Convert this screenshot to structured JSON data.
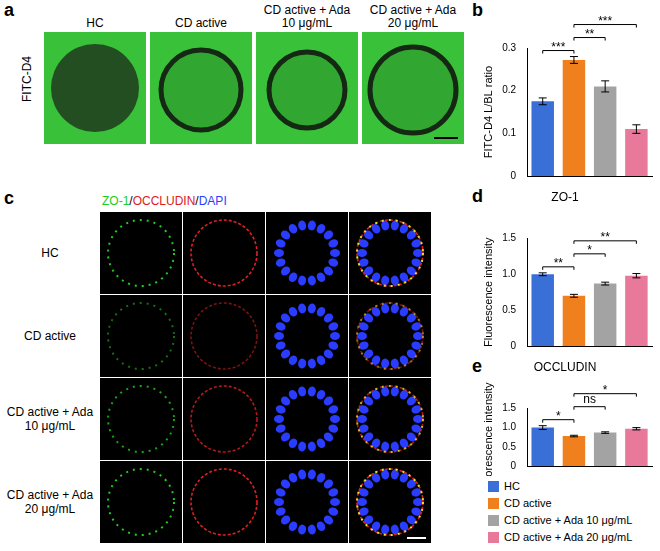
{
  "panel_labels": [
    "a",
    "b",
    "c",
    "d",
    "e"
  ],
  "image_panels": {
    "a": {
      "row_label": "FITC-D4",
      "columns": [
        "HC",
        "CD active",
        "CD active + Ada 10 μg/mL",
        "CD active + Ada 20 μg/mL"
      ]
    },
    "c": {
      "channels": [
        {
          "name": "ZO-1",
          "color": "#22cc22"
        },
        {
          "name": "OCCLUDIN",
          "color": "#e02020"
        },
        {
          "name": "DAPI",
          "color": "#2a3cff"
        }
      ],
      "channel_separator": "/",
      "rows": [
        "HC",
        "CD active",
        "CD active + Ada 10 μg/mL",
        "CD active + Ada 20 μg/mL"
      ]
    }
  },
  "chart_data": [
    {
      "type": "bar",
      "y_label": "FITC-D4 L/BL ratio",
      "categories": [
        "HC",
        "CD active",
        "CD active + Ada 10 μg/mL",
        "CD active + Ada 20 μg/mL"
      ],
      "values": [
        0.175,
        0.272,
        0.21,
        0.11
      ],
      "errors": [
        0.008,
        0.008,
        0.013,
        0.01
      ],
      "colors": [
        "#3a6fd8",
        "#f07f1e",
        "#a3a3a3",
        "#e8799a"
      ],
      "ylim": [
        0,
        0.3
      ],
      "yticks": [
        0,
        0.1,
        0.2,
        0.3
      ],
      "grid": false,
      "tick_labels": "y",
      "significance": [
        {
          "from": 0,
          "to": 1,
          "label": "***"
        },
        {
          "from": 1,
          "to": 2,
          "label": "**"
        },
        {
          "from": 1,
          "to": 3,
          "label": "***"
        }
      ]
    },
    {
      "type": "bar",
      "title": "ZO-1",
      "y_label": "Fluorescence intensity",
      "categories": [
        "HC",
        "CD active",
        "CD active + Ada 10 μg/mL",
        "CD active + Ada 20 μg/mL"
      ],
      "values": [
        1.0,
        0.7,
        0.87,
        0.98
      ],
      "errors": [
        0.02,
        0.02,
        0.02,
        0.03
      ],
      "colors": [
        "#3a6fd8",
        "#f07f1e",
        "#a3a3a3",
        "#e8799a"
      ],
      "ylim": [
        0,
        1.5
      ],
      "yticks": [
        0,
        0.5,
        {
          "value": 1,
          "label": "1.0"
        },
        1.5
      ],
      "grid": false,
      "tick_labels": "y",
      "significance": [
        {
          "from": 0,
          "to": 1,
          "label": "**"
        },
        {
          "from": 1,
          "to": 2,
          "label": "*"
        },
        {
          "from": 1,
          "to": 3,
          "label": "**"
        }
      ]
    },
    {
      "type": "bar",
      "title": "OCCLUDIN",
      "y_label": "Fluorescence intensity",
      "categories": [
        "HC",
        "CD active",
        "CD active + Ada 10 μg/mL",
        "CD active + Ada 20 μg/mL"
      ],
      "values": [
        1.0,
        0.78,
        0.87,
        0.97
      ],
      "errors": [
        0.05,
        0.02,
        0.02,
        0.03
      ],
      "colors": [
        "#3a6fd8",
        "#f07f1e",
        "#a3a3a3",
        "#e8799a"
      ],
      "ylim": [
        0,
        1.5
      ],
      "yticks": [
        0,
        0.5,
        {
          "value": 1,
          "label": "1.0"
        },
        1.5
      ],
      "grid": false,
      "tick_labels": "y",
      "significance": [
        {
          "from": 0,
          "to": 1,
          "label": "*"
        },
        {
          "from": 1,
          "to": 2,
          "label": "ns"
        },
        {
          "from": 1,
          "to": 3,
          "label": "*"
        }
      ]
    }
  ],
  "group_legend": [
    {
      "name": "HC",
      "color": "#3a6fd8"
    },
    {
      "name": "CD active",
      "color": "#f07f1e"
    },
    {
      "name": "CD active + Ada 10 μg/mL",
      "color": "#a3a3a3"
    },
    {
      "name": "CD active + Ada 20 μg/mL",
      "color": "#e8799a"
    }
  ]
}
